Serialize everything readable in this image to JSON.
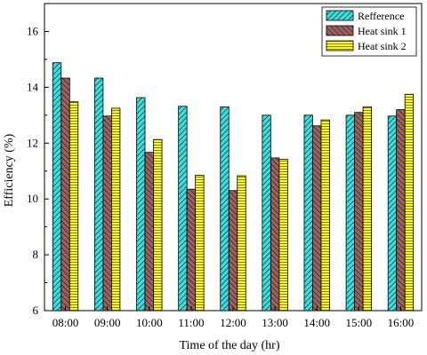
{
  "chart_data": {
    "type": "bar",
    "title": "",
    "xlabel": "Time of the day (hr)",
    "ylabel": "Efficiency (%)",
    "ylim": [
      6,
      17
    ],
    "yticks": [
      6,
      8,
      10,
      12,
      14,
      16
    ],
    "categories": [
      "08:00",
      "09:00",
      "10:00",
      "11:00",
      "12:00",
      "13:00",
      "14:00",
      "15:00",
      "16:00"
    ],
    "series": [
      {
        "name": "Refference",
        "values": [
          14.88,
          14.33,
          13.63,
          13.32,
          13.3,
          13.0,
          13.0,
          13.0,
          12.97
        ]
      },
      {
        "name": "Heat sink 1",
        "values": [
          14.33,
          12.97,
          11.67,
          10.35,
          10.3,
          11.47,
          12.62,
          13.1,
          13.2
        ]
      },
      {
        "name": "Heat sink 2",
        "values": [
          13.48,
          13.25,
          12.13,
          10.85,
          10.83,
          11.42,
          12.83,
          13.3,
          13.75
        ]
      }
    ],
    "legend_position": "top-right",
    "grid": false,
    "colors": [
      "#33dfdf",
      "#a06060",
      "#ffff00"
    ],
    "patterns": [
      "diagonal-right",
      "diagonal-left",
      "horizontal"
    ]
  }
}
